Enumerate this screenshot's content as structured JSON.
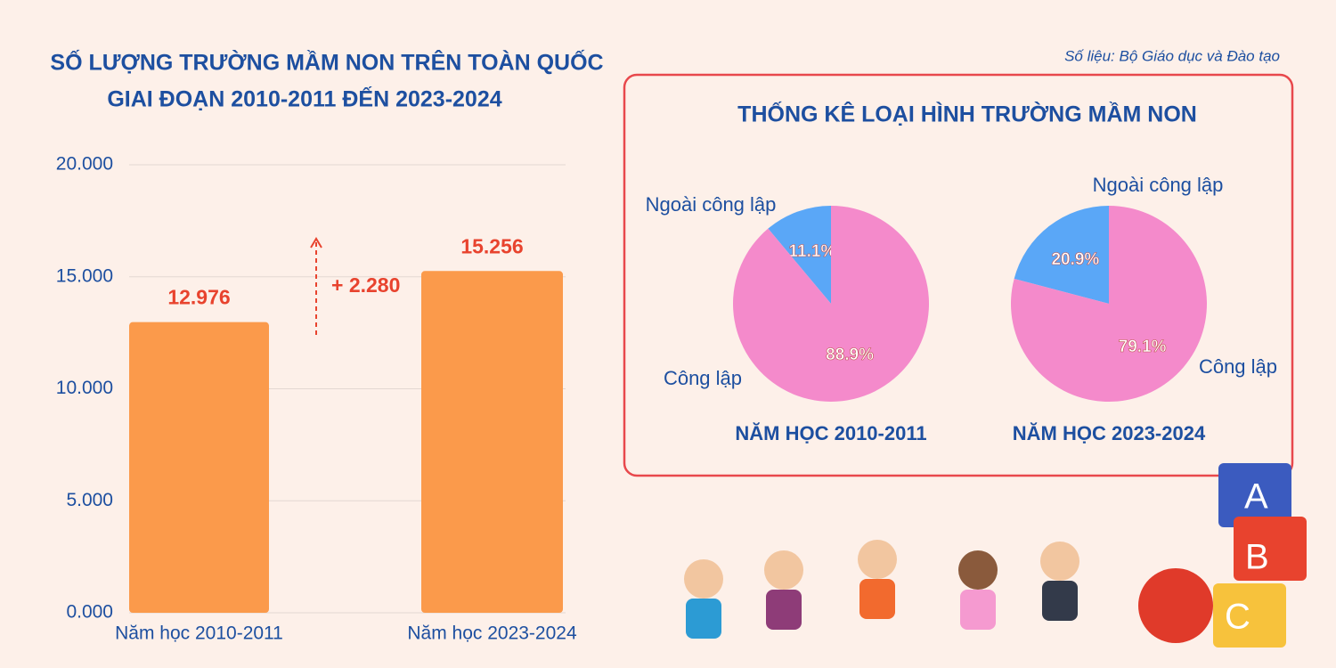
{
  "source": "Số liệu: Bộ Giáo dục và Đào tạo",
  "panel_title": "THỐNG KÊ LOẠI HÌNH TRƯỜNG MẦM NON",
  "chart_data": [
    {
      "type": "bar",
      "title": [
        "SỐ LƯỢNG TRƯỜNG MẦM NON TRÊN TOÀN QUỐC",
        "GIAI ĐOẠN 2010-2011 ĐẾN 2023-2024"
      ],
      "categories": [
        "Năm học 2010-2011",
        "Năm học 2023-2024"
      ],
      "values": [
        12976,
        15256
      ],
      "value_labels": [
        "12.976",
        "15.256"
      ],
      "annotation": "+ 2.280",
      "color": "#fb9a4b",
      "ylim": [
        0,
        20000
      ],
      "yticks": [
        {
          "value": 0,
          "label": "0.000"
        },
        {
          "value": 5000,
          "label": "5.000"
        },
        {
          "value": 10000,
          "label": "10.000"
        },
        {
          "value": 15000,
          "label": "15.000"
        },
        {
          "value": 20000,
          "label": "20.000"
        }
      ],
      "grid": true
    },
    {
      "type": "pie",
      "title": "NĂM HỌC 2010-2011",
      "categories": [
        "Ngoài công lập",
        "Công lập"
      ],
      "values": [
        11.1,
        88.9
      ],
      "value_labels": [
        "11.1%",
        "88.9%"
      ],
      "colors": [
        "#5aa7f7",
        "#f48acb"
      ]
    },
    {
      "type": "pie",
      "title": "NĂM HỌC 2023-2024",
      "categories": [
        "Ngoài công lập",
        "Công lập"
      ],
      "values": [
        20.9,
        79.1
      ],
      "value_labels": [
        "20.9%",
        "79.1%"
      ],
      "colors": [
        "#5aa7f7",
        "#f48acb"
      ]
    }
  ]
}
